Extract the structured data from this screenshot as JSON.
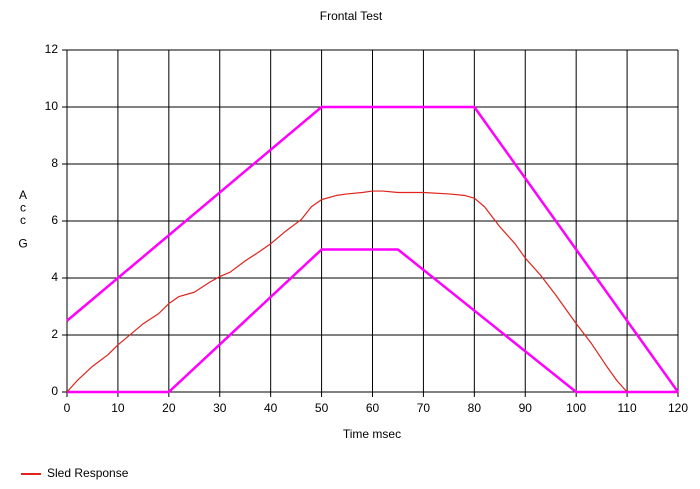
{
  "chart_data": {
    "type": "line",
    "title": "Frontal Test",
    "xlabel": "Time msec",
    "ylabel": "Acc G",
    "xlim": [
      0,
      120
    ],
    "xticks": [
      0,
      10,
      20,
      30,
      40,
      50,
      60,
      70,
      80,
      90,
      100,
      110,
      120
    ],
    "ylim": [
      0,
      12
    ],
    "yticks": [
      0,
      2,
      4,
      6,
      8,
      10,
      12
    ],
    "grid": true,
    "legend": "bottom-left",
    "series": [
      {
        "color": "#ff00ff",
        "x": [
          0,
          50,
          80,
          120
        ],
        "values": [
          2.5,
          10,
          10,
          0
        ]
      },
      {
        "color": "#ff00ff",
        "x": [
          0,
          20,
          50,
          65,
          100,
          120
        ],
        "values": [
          0,
          0,
          5,
          5,
          0,
          0
        ]
      },
      {
        "name": "Sled Response",
        "color": "#e0231c",
        "x": [
          0,
          2,
          5,
          8,
          10,
          15,
          18,
          20,
          22,
          25,
          28,
          30,
          32,
          35,
          38,
          40,
          43,
          46,
          48,
          50,
          53,
          55,
          58,
          60,
          62,
          65,
          70,
          75,
          78,
          80,
          82,
          85,
          88,
          90,
          93,
          96,
          100,
          103,
          106,
          108,
          110
        ],
        "values": [
          0,
          0.4,
          0.9,
          1.3,
          1.65,
          2.4,
          2.75,
          3.1,
          3.35,
          3.5,
          3.85,
          4.05,
          4.2,
          4.6,
          4.95,
          5.2,
          5.65,
          6.05,
          6.5,
          6.75,
          6.9,
          6.95,
          7.0,
          7.05,
          7.05,
          7.0,
          7.0,
          6.95,
          6.9,
          6.8,
          6.5,
          5.8,
          5.2,
          4.7,
          4.1,
          3.4,
          2.4,
          1.7,
          0.9,
          0.4,
          0
        ]
      }
    ]
  }
}
